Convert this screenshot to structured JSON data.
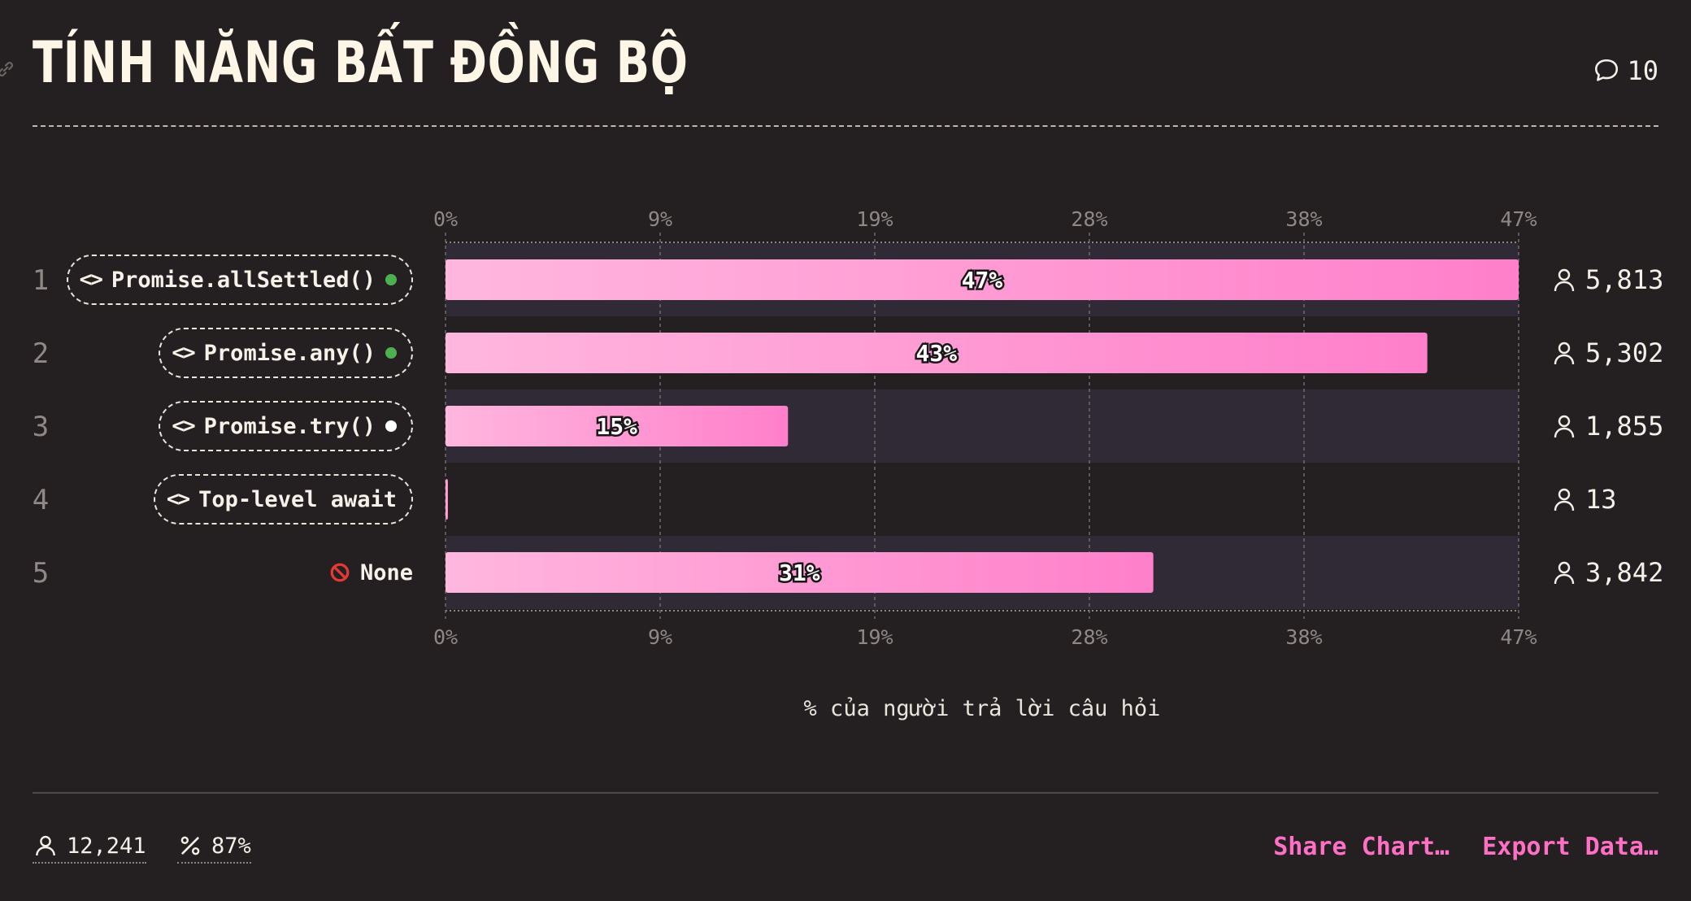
{
  "title": "TÍNH NĂNG BẤT ĐỒNG BỘ",
  "comments_count": "10",
  "colors": {
    "background": "#242022",
    "bar_start": "#ffb7de",
    "bar_end": "#ff7fca",
    "accent": "#ff70c4",
    "dot_available": "#4caf50",
    "dot_new": "#ffffff",
    "row_band": "#302a36"
  },
  "chart_data": {
    "type": "bar",
    "orientation": "horizontal",
    "xlabel": "% của người trả lời câu hỏi",
    "xlim": [
      0,
      47
    ],
    "ticks": [
      "0%",
      "9%",
      "19%",
      "28%",
      "38%",
      "47%"
    ],
    "tick_values": [
      0,
      9.4,
      18.8,
      28.2,
      37.6,
      47
    ],
    "rows": [
      {
        "rank": "1",
        "label": "Promise.allSettled()",
        "icon": "code-icon",
        "status_dot": "available",
        "value": 47,
        "value_label": "47%",
        "count": "5,813"
      },
      {
        "rank": "2",
        "label": "Promise.any()",
        "icon": "code-icon",
        "status_dot": "available",
        "value": 43,
        "value_label": "43%",
        "count": "5,302"
      },
      {
        "rank": "3",
        "label": "Promise.try()",
        "icon": "code-icon",
        "status_dot": "new",
        "value": 15,
        "value_label": "15%",
        "count": "1,855"
      },
      {
        "rank": "4",
        "label": "Top-level await",
        "icon": "code-icon",
        "status_dot": "",
        "value": 0.1,
        "value_label": "",
        "count": "13"
      },
      {
        "rank": "5",
        "label": "None",
        "icon": "no-entry-icon",
        "status_dot": "",
        "value": 31,
        "value_label": "31%",
        "count": "3,842"
      }
    ]
  },
  "footer": {
    "respondents": "12,241",
    "percent": "87%",
    "share_label": "Share Chart…",
    "export_label": "Export Data…"
  }
}
